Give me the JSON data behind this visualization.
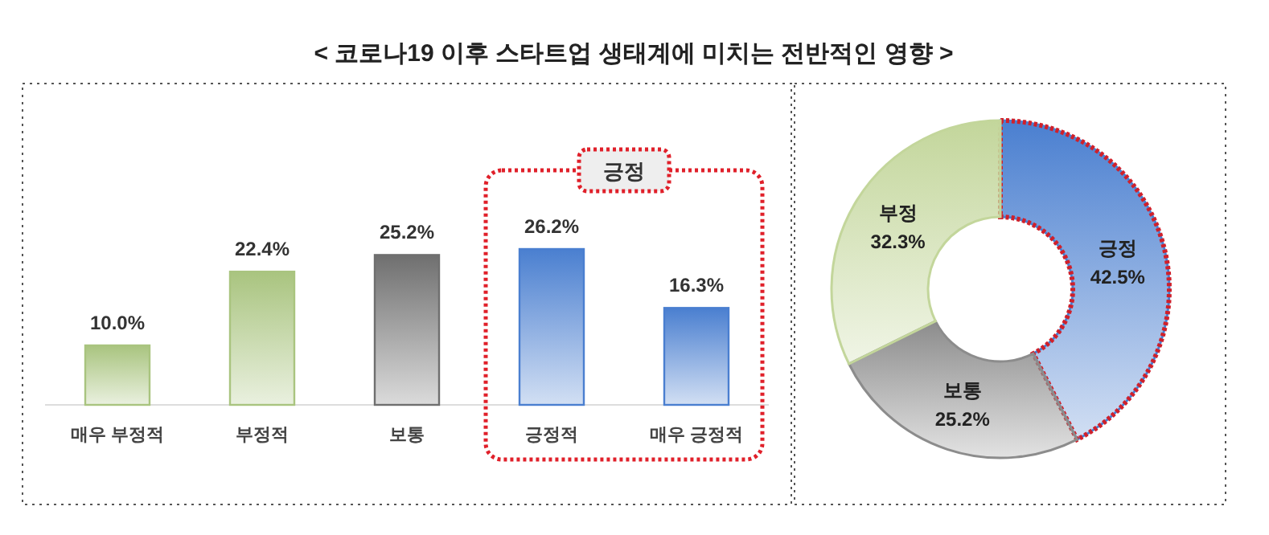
{
  "chart_data": [
    {
      "type": "bar",
      "title": "< 코로나19 이후 스타트업 생태계에 미치는 전반적인 영향 >",
      "categories": [
        "매우 부정적",
        "부정적",
        "보통",
        "긍정적",
        "매우 긍정적"
      ],
      "values": [
        10.0,
        22.4,
        25.2,
        26.2,
        16.3
      ],
      "value_labels": [
        "10.0%",
        "22.4%",
        "25.2%",
        "26.2%",
        "16.3%"
      ],
      "colors": [
        "#a9c47f",
        "#a9c47f",
        "#6f6f6f",
        "#4a7fd0",
        "#4a7fd0"
      ],
      "annotations": [
        "긍정"
      ]
    },
    {
      "type": "donut",
      "categories": [
        "긍정",
        "보통",
        "부정"
      ],
      "values": [
        42.5,
        25.2,
        32.3
      ],
      "value_labels": [
        "42.5%",
        "25.2%",
        "32.3%"
      ],
      "colors": [
        "#4a7fd0",
        "#8c8c8c",
        "#c3d69b"
      ]
    }
  ]
}
